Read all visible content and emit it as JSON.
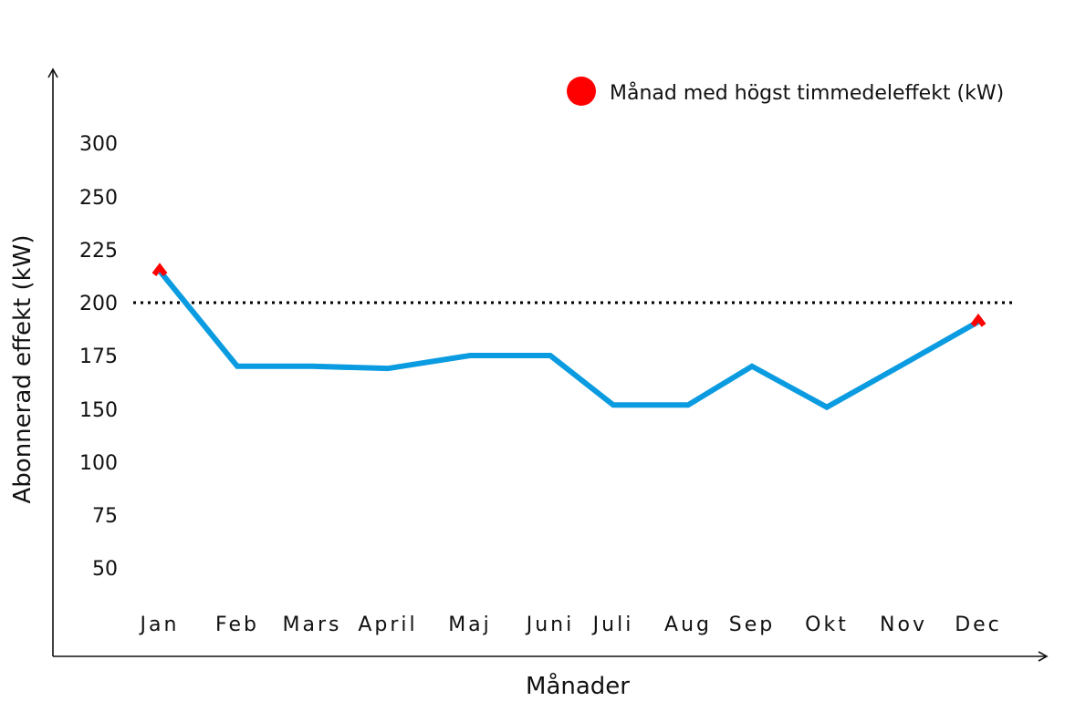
{
  "chart_data": {
    "type": "line",
    "xlabel": "Månader",
    "ylabel": "Abonnerad effekt (kW)",
    "categories": [
      "Jan",
      "Feb",
      "Mars",
      "April",
      "Maj",
      "Juni",
      "Juli",
      "Aug",
      "Sep",
      "Okt",
      "Nov",
      "Dec"
    ],
    "y_ticks": [
      50,
      75,
      100,
      150,
      175,
      200,
      225,
      250,
      300
    ],
    "series": [
      {
        "values": [
          215,
          170,
          170,
          169,
          175,
          175,
          152,
          152,
          170,
          151,
          171,
          191
        ],
        "color": "#0a9be0"
      }
    ],
    "reference_line": {
      "y": 200,
      "style": "dotted",
      "color": "#000000"
    },
    "highlight": {
      "categories": [
        "Jan",
        "Dec"
      ],
      "color": "#ff0000"
    },
    "legend": {
      "position": "top-right",
      "label": "Månad med högst timmedeleffekt (kW)",
      "marker_color": "#ff0000"
    },
    "grid": false
  }
}
